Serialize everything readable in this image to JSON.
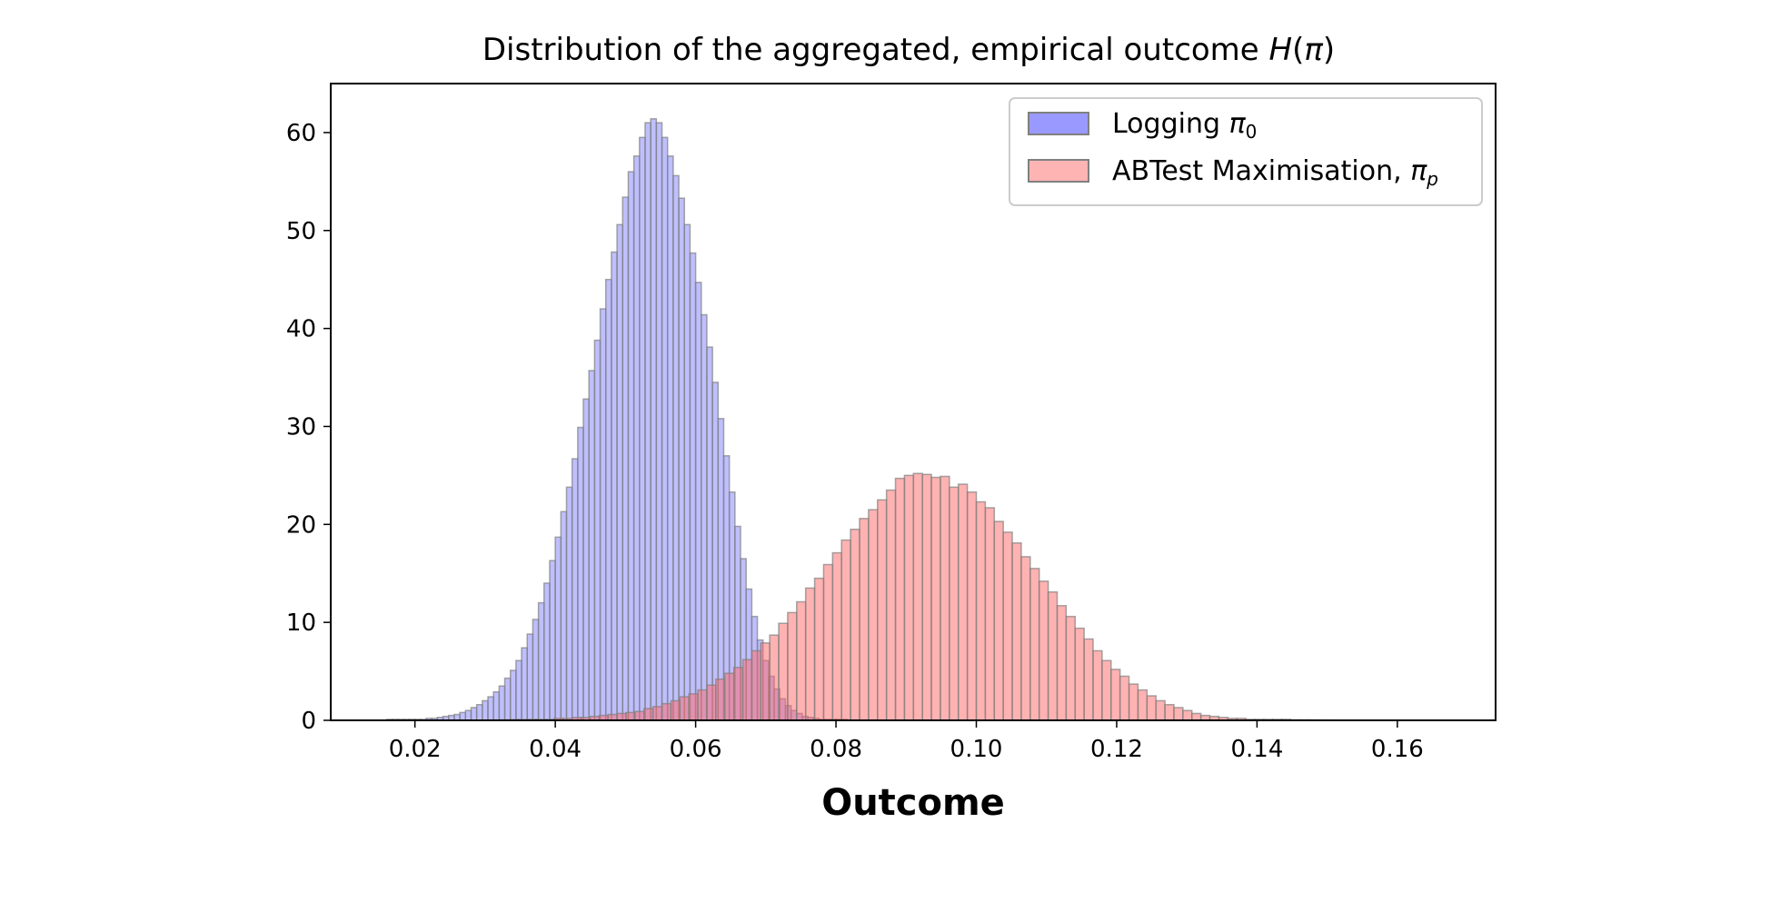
{
  "chart_data": {
    "type": "histogram",
    "title": "Distribution of the aggregated, empirical outcome H(π)",
    "title_parts": {
      "main": "Distribution of the aggregated, empirical outcome ",
      "var": "H",
      "open": "(",
      "arg": "π",
      "close": ")"
    },
    "xlabel": "Outcome",
    "ylabel": "",
    "xlim": [
      0.008,
      0.174
    ],
    "ylim": [
      0,
      65
    ],
    "xticks": [
      0.02,
      0.04,
      0.06,
      0.08,
      0.1,
      0.12,
      0.14,
      0.16
    ],
    "xtick_labels": [
      "0.02",
      "0.04",
      "0.06",
      "0.08",
      "0.10",
      "0.12",
      "0.14",
      "0.16"
    ],
    "yticks": [
      0,
      10,
      20,
      30,
      40,
      50,
      60
    ],
    "ytick_labels": [
      "0",
      "10",
      "20",
      "30",
      "40",
      "50",
      "60"
    ],
    "grid": false,
    "legend_position": "top-right",
    "series": [
      {
        "name": "Logging π0",
        "legend_text": "Logging ",
        "legend_symbol": "π",
        "legend_sub": "0",
        "color": "#8080ff",
        "edge_color": "#808080",
        "alpha": 0.5,
        "bin_start": 0.016,
        "bin_width": 0.0008,
        "values": [
          0.1,
          0.1,
          0.1,
          0.1,
          0.1,
          0.1,
          0.1,
          0.2,
          0.2,
          0.3,
          0.4,
          0.5,
          0.6,
          0.8,
          1.0,
          1.3,
          1.6,
          2.0,
          2.4,
          2.9,
          3.5,
          4.3,
          5.1,
          6.1,
          7.4,
          8.8,
          10.3,
          12.0,
          14.0,
          16.3,
          18.7,
          21.3,
          23.8,
          26.7,
          29.9,
          32.8,
          35.7,
          38.8,
          42.0,
          45.0,
          47.8,
          50.6,
          53.4,
          56.0,
          57.6,
          59.5,
          61.0,
          61.4,
          61.0,
          59.5,
          57.6,
          55.6,
          53.3,
          50.6,
          47.7,
          44.7,
          41.4,
          38.1,
          34.5,
          30.8,
          27.0,
          23.3,
          19.8,
          16.5,
          13.4,
          10.6,
          8.2,
          6.1,
          4.5,
          3.2,
          2.2,
          1.5,
          1.0,
          0.7,
          0.4,
          0.3,
          0.2,
          0.1,
          0.1,
          0.1,
          0.1,
          0.1
        ]
      },
      {
        "name": "ABTest Maximisation, πp",
        "legend_text": "ABTest Maximisation, ",
        "legend_symbol": "π",
        "legend_sub": "p",
        "color": "#ff6666",
        "edge_color": "#808080",
        "alpha": 0.5,
        "bin_start": 0.0296,
        "bin_width": 0.00128,
        "values": [
          0.03,
          0.04,
          0.05,
          0.07,
          0.09,
          0.1,
          0.1,
          0.1,
          0.2,
          0.2,
          0.3,
          0.3,
          0.4,
          0.5,
          0.6,
          0.7,
          0.8,
          0.9,
          1.2,
          1.4,
          1.7,
          2.0,
          2.4,
          2.7,
          3.1,
          3.6,
          4.2,
          4.8,
          5.4,
          6.2,
          7.1,
          7.9,
          8.7,
          9.9,
          11.0,
          12.1,
          13.5,
          14.5,
          15.9,
          17.1,
          18.4,
          19.5,
          20.6,
          21.5,
          22.5,
          23.5,
          24.7,
          25.0,
          25.2,
          25.1,
          24.8,
          24.9,
          23.8,
          24.1,
          23.3,
          22.3,
          21.7,
          20.3,
          19.2,
          18.1,
          16.7,
          15.5,
          14.2,
          13.1,
          11.7,
          10.6,
          9.4,
          8.3,
          7.1,
          6.1,
          5.2,
          4.5,
          3.7,
          3.1,
          2.5,
          2.0,
          1.6,
          1.3,
          1.0,
          0.7,
          0.5,
          0.4,
          0.3,
          0.2,
          0.2,
          0.1,
          0.1,
          0.1,
          0.1,
          0.1,
          0.05,
          0.05,
          0.04,
          0.03,
          0.03,
          0.02,
          0.02,
          0.02,
          0.01,
          0.01,
          0.01,
          0.01,
          0.01,
          0.01,
          0.01
        ]
      }
    ]
  }
}
